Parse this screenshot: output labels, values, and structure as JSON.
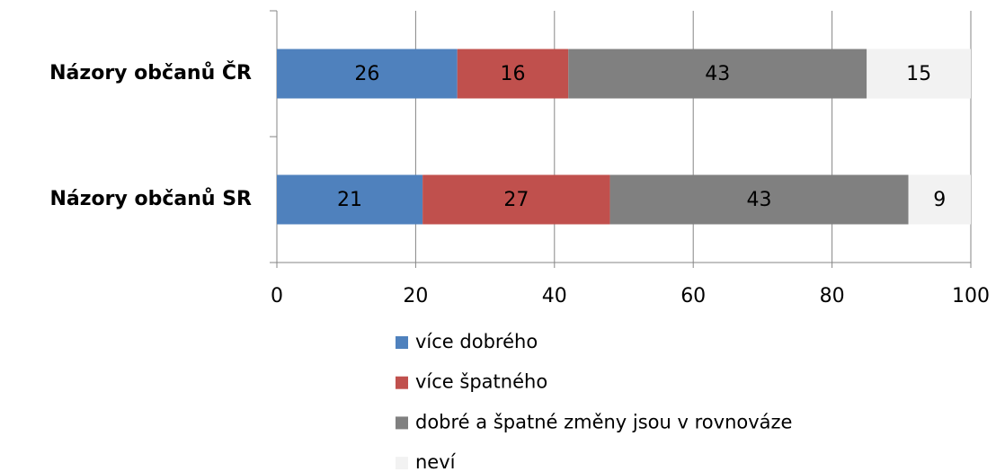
{
  "chart_data": {
    "type": "bar",
    "orientation": "horizontal",
    "stacked": true,
    "categories": [
      "Názory občanů ČR",
      "Názory občanů SR"
    ],
    "series": [
      {
        "name": "více dobrého",
        "color": "#4f81bd",
        "values": [
          26,
          21
        ]
      },
      {
        "name": "více špatného",
        "color": "#c0504d",
        "values": [
          16,
          27
        ]
      },
      {
        "name": "dobré a špatné změny jsou v rovnováze",
        "color": "#808080",
        "values": [
          43,
          43
        ]
      },
      {
        "name": "neví",
        "color": "#f2f2f2",
        "values": [
          15,
          9
        ]
      }
    ],
    "xlim": [
      0,
      100
    ],
    "xticks": [
      0,
      20,
      40,
      60,
      80,
      100
    ],
    "grid": true,
    "legend": "bottom"
  }
}
